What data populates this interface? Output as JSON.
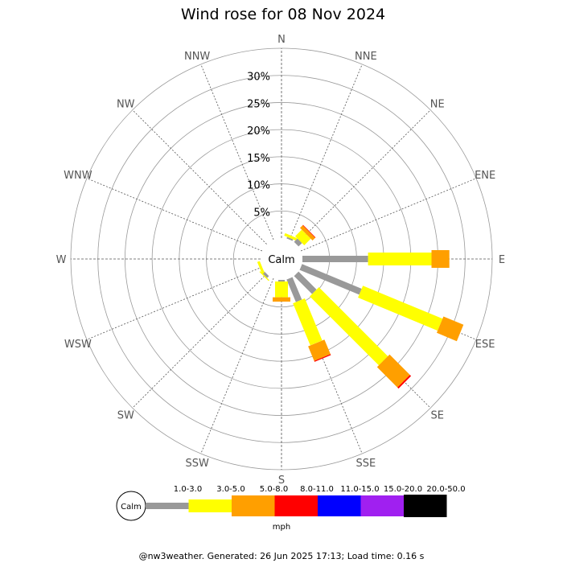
{
  "chart_data": {
    "type": "wind-rose",
    "title": "Wind rose for 08 Nov 2024",
    "directions": [
      "N",
      "NNE",
      "NE",
      "ENE",
      "E",
      "ESE",
      "SE",
      "SSE",
      "S",
      "SSW",
      "SW",
      "WSW",
      "W",
      "WNW",
      "NW",
      "NNW"
    ],
    "radial_ticks": [
      "5%",
      "10%",
      "15%",
      "20%",
      "25%",
      "30%"
    ],
    "radial_max": 35,
    "calm_label": "Calm",
    "unit": "mph",
    "speed_bins": [
      {
        "label": "1.0-3.0",
        "color": "#999999"
      },
      {
        "label": "3.0-5.0",
        "color": "#ffff00"
      },
      {
        "label": "5.0-8.0",
        "color": "#ff9f00"
      },
      {
        "label": "8.0-11.0",
        "color": "#ff0000"
      },
      {
        "label": "11.0-15.0",
        "color": "#0000ff"
      },
      {
        "label": "15.0-20.0",
        "color": "#a020f0"
      },
      {
        "label": "20.0-50.0",
        "color": "#000000"
      }
    ],
    "series": [
      {
        "direction": "N",
        "cumulative": [
          0.0,
          0.0,
          0.0,
          0.0,
          0.0,
          0.0,
          0.0
        ]
      },
      {
        "direction": "NNE",
        "cumulative": [
          0.3,
          0.8,
          0.8,
          0.8,
          0.8,
          0.8,
          0.8
        ]
      },
      {
        "direction": "NE",
        "cumulative": [
          0.9,
          2.6,
          3.3,
          3.4,
          3.4,
          3.4,
          3.4
        ]
      },
      {
        "direction": "ENE",
        "cumulative": [
          0.0,
          0.0,
          0.0,
          0.0,
          0.0,
          0.0,
          0.0
        ]
      },
      {
        "direction": "E",
        "cumulative": [
          12.1,
          23.8,
          27.1,
          27.1,
          27.1,
          27.1,
          27.1
        ]
      },
      {
        "direction": "ESE",
        "cumulative": [
          11.9,
          27.8,
          31.8,
          31.8,
          31.8,
          31.8,
          31.8
        ]
      },
      {
        "direction": "SE",
        "cumulative": [
          4.7,
          22.7,
          28.0,
          28.3,
          28.3,
          28.3,
          28.3
        ]
      },
      {
        "direction": "SSE",
        "cumulative": [
          4.5,
          12.9,
          15.8,
          16.0,
          16.0,
          16.0,
          16.0
        ]
      },
      {
        "direction": "S",
        "cumulative": [
          0.3,
          3.2,
          4.0,
          4.0,
          4.0,
          4.0,
          4.0
        ]
      },
      {
        "direction": "SSW",
        "cumulative": [
          0.0,
          0.0,
          0.0,
          0.0,
          0.0,
          0.0,
          0.0
        ]
      },
      {
        "direction": "SW",
        "cumulative": [
          0.5,
          0.7,
          0.7,
          0.7,
          0.7,
          0.7,
          0.7
        ]
      },
      {
        "direction": "WSW",
        "cumulative": [
          0.0,
          0.5,
          0.5,
          0.5,
          0.5,
          0.5,
          0.5
        ]
      },
      {
        "direction": "W",
        "cumulative": [
          0.0,
          0.0,
          0.0,
          0.0,
          0.0,
          0.0,
          0.0
        ]
      },
      {
        "direction": "WNW",
        "cumulative": [
          0.0,
          0.0,
          0.0,
          0.0,
          0.0,
          0.0,
          0.0
        ]
      },
      {
        "direction": "NW",
        "cumulative": [
          0.0,
          0.0,
          0.0,
          0.0,
          0.0,
          0.0,
          0.0
        ]
      },
      {
        "direction": "NNW",
        "cumulative": [
          0.0,
          0.0,
          0.0,
          0.0,
          0.0,
          0.0,
          0.0
        ]
      }
    ],
    "grid": true
  },
  "footer": "@nw3weather. Generated: 26 Jun 2025 17:13; Load time: 0.16 s"
}
